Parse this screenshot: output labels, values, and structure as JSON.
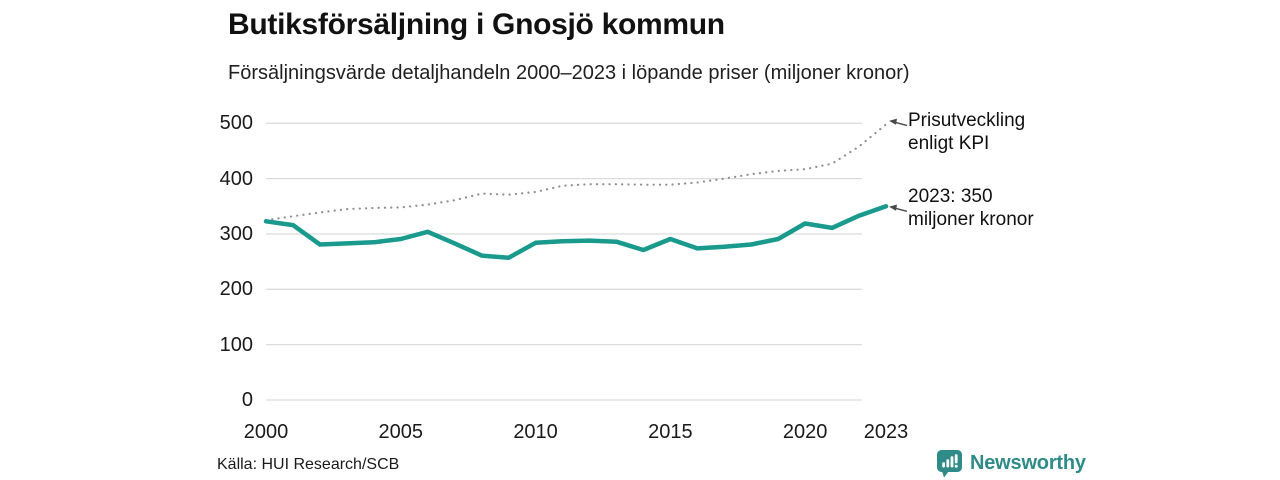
{
  "header": {
    "title": "Butiksförsäljning i Gnosjö kommun",
    "subtitle": "Försäljningsvärde detaljhandeln 2000–2023 i löpande priser (miljoner kronor)"
  },
  "chart_data": {
    "type": "line",
    "x": [
      2000,
      2001,
      2002,
      2003,
      2004,
      2005,
      2006,
      2007,
      2008,
      2009,
      2010,
      2011,
      2012,
      2013,
      2014,
      2015,
      2016,
      2017,
      2018,
      2019,
      2020,
      2021,
      2022,
      2023
    ],
    "series": [
      {
        "name": "Butiksförsäljning (löpande priser)",
        "style": "solid",
        "color": "#1a9a8c",
        "values": [
          323,
          316,
          281,
          283,
          285,
          291,
          304,
          283,
          261,
          257,
          284,
          287,
          288,
          286,
          271,
          291,
          274,
          277,
          281,
          291,
          319,
          311,
          333,
          350
        ]
      },
      {
        "name": "Prisutveckling enligt KPI",
        "style": "dotted",
        "color": "#8f8f8f",
        "values": [
          325,
          332,
          339,
          345,
          347,
          348,
          353,
          361,
          373,
          371,
          376,
          387,
          390,
          390,
          389,
          389,
          393,
          400,
          408,
          414,
          417,
          427,
          458,
          498
        ]
      }
    ],
    "ylim": [
      0,
      500
    ],
    "yticks": [
      0,
      100,
      200,
      300,
      400,
      500
    ],
    "xticks": [
      2000,
      2005,
      2010,
      2015,
      2020,
      2023
    ],
    "grid": "horizontal",
    "legend_position": "annotations-right",
    "annotations": [
      {
        "series_index": 1,
        "line1": "Prisutveckling",
        "line2": "enligt KPI"
      },
      {
        "series_index": 0,
        "line1": "2023: 350",
        "line2": "miljoner kronor"
      }
    ]
  },
  "footer": {
    "source": "Källa: HUI Research/SCB",
    "brand": "Newsworthy"
  },
  "icons": {
    "brand_logo": "newsworthy-speech-bubble-bar-chart-icon"
  },
  "colors": {
    "accent_teal": "#1a9a8c",
    "kpi_dotted_gray": "#8f8f8f",
    "gridline": "#dcdcdc",
    "text": "#1a1a1a",
    "arrow": "#4a4a4a",
    "brand_teal": "#2e8b87",
    "background": "#ffffff"
  }
}
